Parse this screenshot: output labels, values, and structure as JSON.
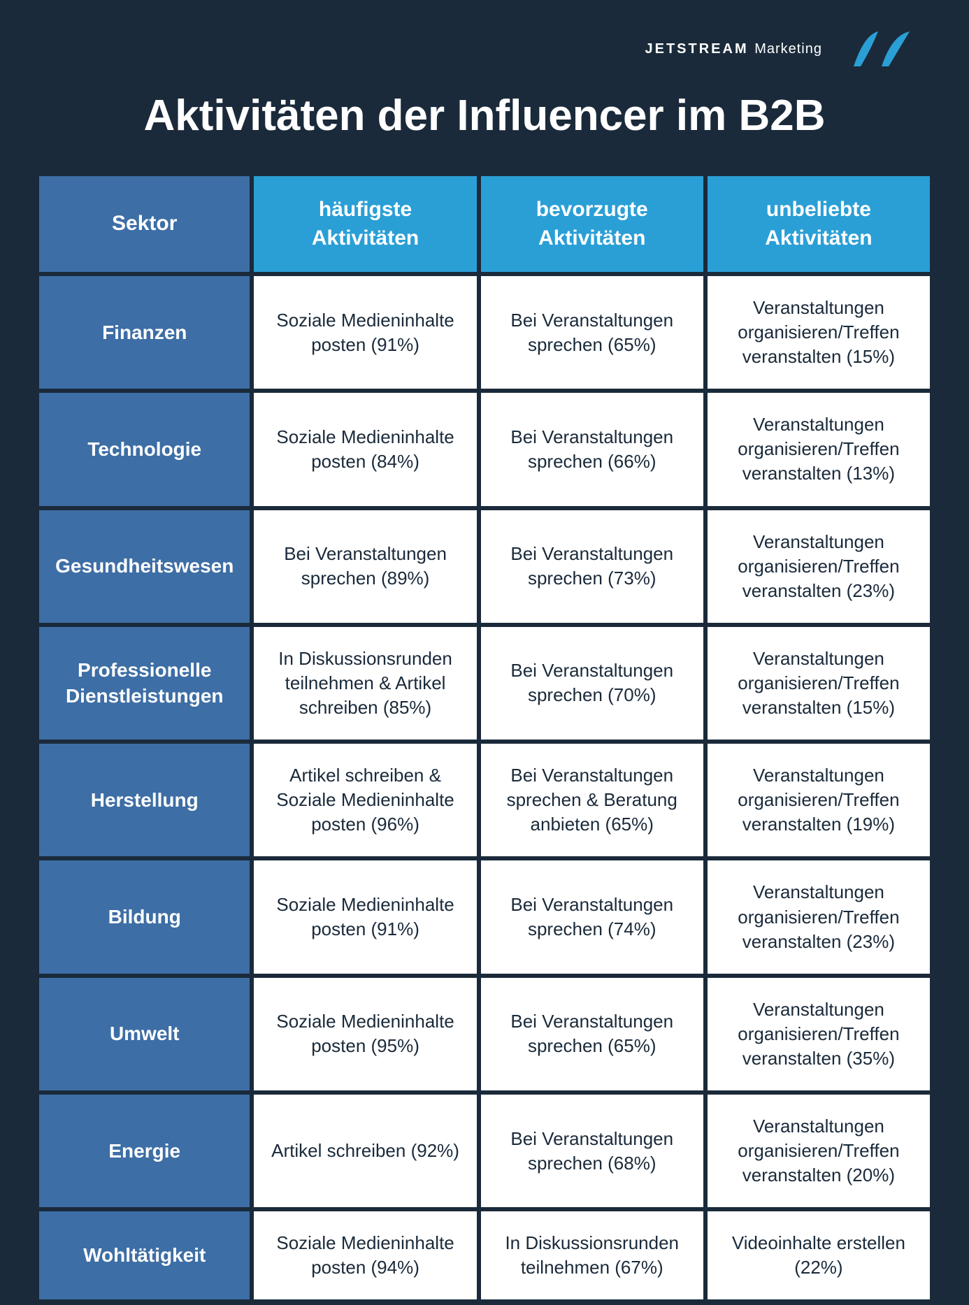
{
  "brand": {
    "name": "JETSTREAM",
    "suffix": "Marketing"
  },
  "logo_color": "#2a9fd6",
  "title": "Aktivitäten der Influencer im B2B",
  "colors": {
    "page_bg": "#1a2a3a",
    "header_sector_bg": "#3d6ea5",
    "header_col_bg": "#2a9fd6",
    "row_label_bg": "#3d6ea5",
    "cell_bg": "#ffffff",
    "cell_text": "#1a2a3a",
    "header_text": "#ffffff"
  },
  "table": {
    "headers": [
      "Sektor",
      "häufigste Aktivitäten",
      "bevorzugte Aktivitäten",
      "unbeliebte Aktivitäten"
    ],
    "rows": [
      {
        "sector": "Finanzen",
        "cells": [
          "Soziale Medieninhalte posten (91%)",
          "Bei Veranstaltungen sprechen (65%)",
          "Veranstaltungen organisieren/Treffen veranstalten (15%)"
        ]
      },
      {
        "sector": "Technologie",
        "cells": [
          "Soziale Medieninhalte posten (84%)",
          "Bei Veranstaltungen sprechen (66%)",
          "Veranstaltungen organisieren/Treffen veranstalten (13%)"
        ]
      },
      {
        "sector": "Gesundheitswesen",
        "cells": [
          "Bei Veranstaltungen sprechen (89%)",
          "Bei Veranstaltungen sprechen (73%)",
          "Veranstaltungen organisieren/Treffen veranstalten (23%)"
        ]
      },
      {
        "sector": "Professionelle Dienstleistungen",
        "cells": [
          "In Diskussionsrunden teilnehmen & Artikel schreiben (85%)",
          "Bei Veranstaltungen sprechen (70%)",
          "Veranstaltungen organisieren/Treffen veranstalten (15%)"
        ]
      },
      {
        "sector": "Herstellung",
        "cells": [
          "Artikel schreiben & Soziale Medieninhalte posten (96%)",
          "Bei Veranstaltungen sprechen & Beratung anbieten (65%)",
          "Veranstaltungen organisieren/Treffen veranstalten (19%)"
        ]
      },
      {
        "sector": "Bildung",
        "cells": [
          "Soziale Medieninhalte posten (91%)",
          "Bei Veranstaltungen sprechen (74%)",
          "Veranstaltungen organisieren/Treffen veranstalten (23%)"
        ]
      },
      {
        "sector": "Umwelt",
        "cells": [
          "Soziale Medieninhalte posten (95%)",
          "Bei Veranstaltungen sprechen (65%)",
          "Veranstaltungen organisieren/Treffen veranstalten (35%)"
        ]
      },
      {
        "sector": "Energie",
        "cells": [
          "Artikel schreiben (92%)",
          "Bei Veranstaltungen sprechen (68%)",
          "Veranstaltungen organisieren/Treffen veranstalten (20%)"
        ]
      },
      {
        "sector": "Wohltätigkeit",
        "cells": [
          "Soziale Medieninhalte posten (94%)",
          "In Diskussionsrunden teilnehmen (67%)",
          "Videoinhalte erstellen (22%)"
        ]
      }
    ]
  }
}
